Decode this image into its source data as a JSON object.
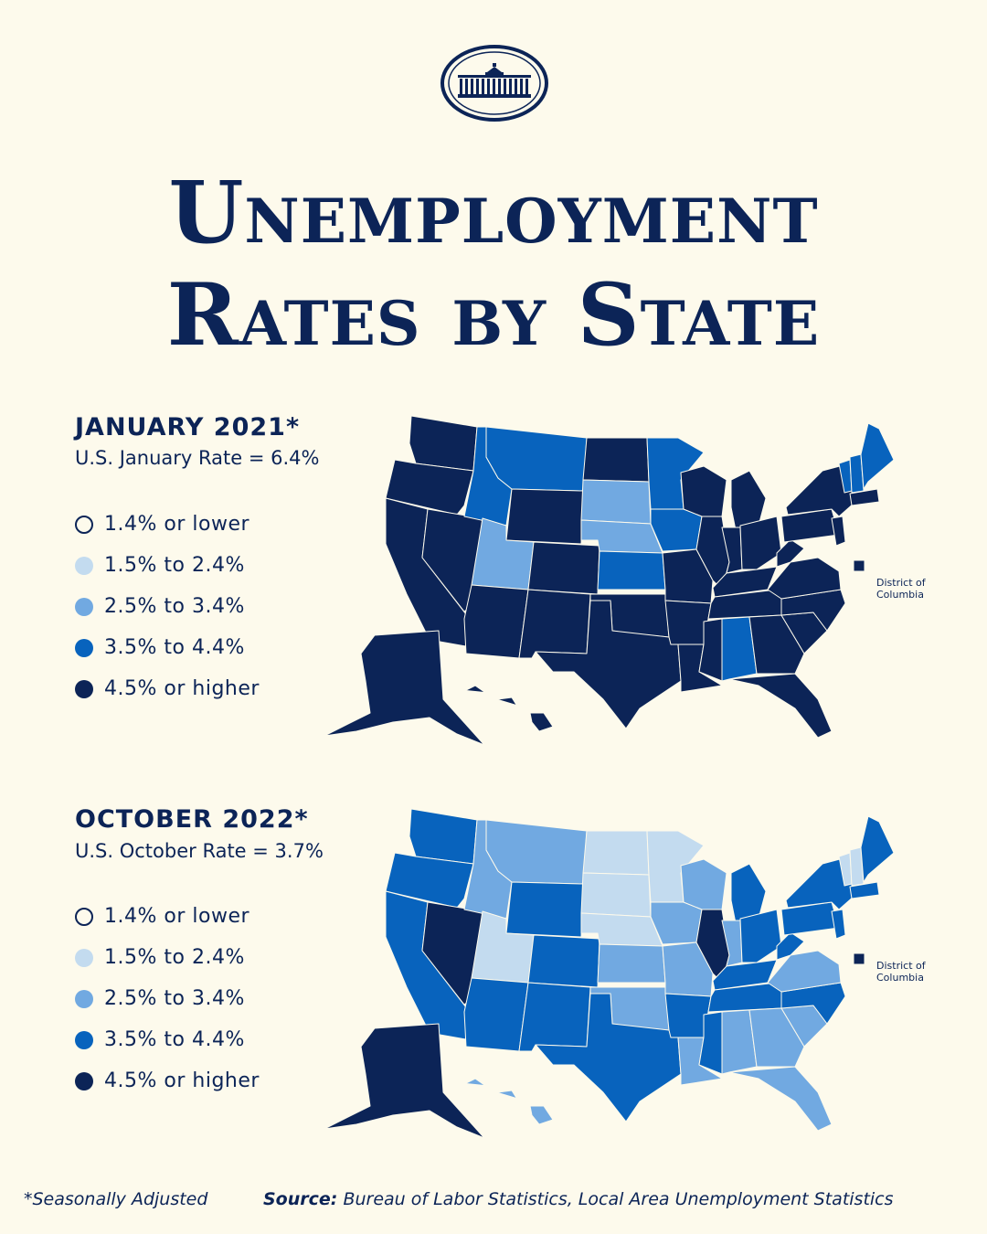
{
  "title": {
    "line1": "Unemployment",
    "line2": "Rates by State"
  },
  "colors": {
    "lowest": "#fdfaec",
    "low": "#c3dbef",
    "mid": "#71a9e1",
    "high": "#0863bd",
    "highest": "#0c2457",
    "border": "#fdfaec",
    "background": "#fdfaec"
  },
  "legend": [
    {
      "label": "1.4% or lower",
      "level": "lowest"
    },
    {
      "label": "1.5% to 2.4%",
      "level": "low"
    },
    {
      "label": "2.5% to 3.4%",
      "level": "mid"
    },
    {
      "label": "3.5% to 4.4%",
      "level": "high"
    },
    {
      "label": "4.5% or higher",
      "level": "highest"
    }
  ],
  "maps": [
    {
      "heading": "JANUARY 2021*",
      "subheading": "U.S. January Rate = 6.4%",
      "dc_label": "District of Columbia",
      "states": {
        "WA": "highest",
        "OR": "highest",
        "CA": "highest",
        "NV": "highest",
        "ID": "high",
        "MT": "high",
        "WY": "highest",
        "UT": "mid",
        "AZ": "highest",
        "CO": "highest",
        "NM": "highest",
        "ND": "highest",
        "SD": "mid",
        "NE": "mid",
        "KS": "high",
        "OK": "highest",
        "TX": "highest",
        "MN": "high",
        "IA": "high",
        "MO": "highest",
        "AR": "highest",
        "LA": "highest",
        "WI": "highest",
        "IL": "highest",
        "MI": "highest",
        "IN": "highest",
        "OH": "highest",
        "KY": "highest",
        "TN": "highest",
        "MS": "highest",
        "AL": "high",
        "GA": "highest",
        "FL": "highest",
        "SC": "highest",
        "NC": "highest",
        "VA": "highest",
        "WV": "highest",
        "PA": "highest",
        "NY": "highest",
        "ME": "high",
        "VT": "high",
        "NH": "high",
        "MA": "highest",
        "NJ": "highest",
        "AK": "highest",
        "HI": "highest",
        "DC": "highest"
      }
    },
    {
      "heading": "OCTOBER 2022*",
      "subheading": "U.S. October Rate = 3.7%",
      "dc_label": "District of Columbia",
      "states": {
        "WA": "high",
        "OR": "high",
        "CA": "high",
        "NV": "highest",
        "ID": "mid",
        "MT": "mid",
        "WY": "high",
        "UT": "low",
        "AZ": "high",
        "CO": "high",
        "NM": "high",
        "ND": "low",
        "SD": "low",
        "NE": "low",
        "KS": "mid",
        "OK": "mid",
        "TX": "high",
        "MN": "low",
        "IA": "mid",
        "MO": "mid",
        "AR": "high",
        "LA": "mid",
        "WI": "mid",
        "IL": "highest",
        "MI": "high",
        "IN": "mid",
        "OH": "high",
        "KY": "high",
        "TN": "high",
        "MS": "high",
        "AL": "mid",
        "GA": "mid",
        "FL": "mid",
        "SC": "mid",
        "NC": "high",
        "VA": "mid",
        "WV": "high",
        "PA": "high",
        "NY": "high",
        "ME": "high",
        "VT": "low",
        "NH": "low",
        "MA": "high",
        "NJ": "high",
        "AK": "highest",
        "HI": "mid",
        "DC": "highest"
      }
    }
  ],
  "footer": {
    "note": "*Seasonally Adjusted",
    "source_label": "Source:",
    "source_text": "Bureau of Labor Statistics, Local Area Unemployment Statistics"
  }
}
